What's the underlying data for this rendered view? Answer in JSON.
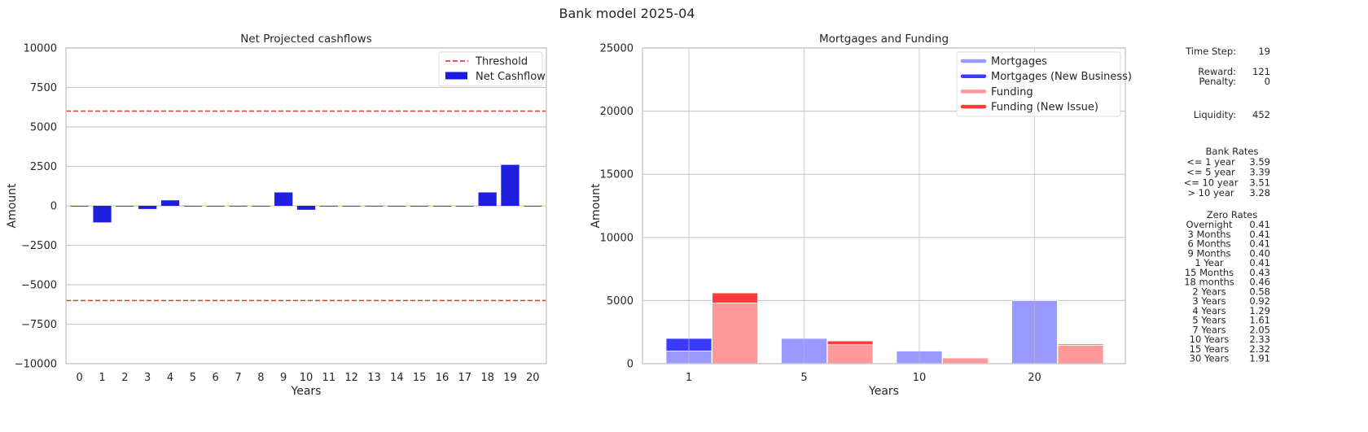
{
  "figure": {
    "title": "Bank model 2025-04"
  },
  "chart_data": [
    {
      "type": "bar",
      "title": "Net Projected cashflows",
      "xlabel": "Years",
      "ylabel": "Amount",
      "ylim": [
        -10000,
        10000
      ],
      "yticks": [
        10000,
        7500,
        5000,
        2500,
        0,
        -2500,
        -5000,
        -7500,
        -10000
      ],
      "ytick_labels": [
        "10000",
        "7500",
        "5000",
        "2500",
        "0",
        "−2500",
        "−5000",
        "−7500",
        "−10000"
      ],
      "categories": [
        "0",
        "1",
        "2",
        "3",
        "4",
        "5",
        "6",
        "7",
        "8",
        "9",
        "10",
        "11",
        "12",
        "13",
        "14",
        "15",
        "16",
        "17",
        "18",
        "19",
        "20"
      ],
      "values": [
        0,
        -1050,
        0,
        -200,
        350,
        0,
        0,
        0,
        0,
        850,
        -250,
        0,
        0,
        0,
        0,
        0,
        0,
        0,
        850,
        2600,
        0
      ],
      "thresholds": [
        6000,
        -6000
      ],
      "grid": true,
      "legend_position": "top-right",
      "legend": [
        {
          "label": "Threshold",
          "kind": "dashed-line",
          "color": "#d62728"
        },
        {
          "label": "Net Cashflow",
          "kind": "patch",
          "color": "#1a1ae0"
        }
      ],
      "colors": {
        "bar": "#1f1fe0",
        "threshold": "#d9453f"
      }
    },
    {
      "type": "bar",
      "title": "Mortgages and Funding",
      "xlabel": "Years",
      "ylabel": "Amount",
      "ylim": [
        0,
        25000
      ],
      "yticks": [
        0,
        5000,
        10000,
        15000,
        20000,
        25000
      ],
      "ytick_labels": [
        "0",
        "5000",
        "10000",
        "15000",
        "20000",
        "25000"
      ],
      "categories": [
        "1",
        "5",
        "10",
        "20"
      ],
      "stacked": true,
      "series": [
        {
          "name": "Mortgages",
          "values": [
            1000,
            2000,
            1000,
            5000
          ],
          "color": "#9999ff"
        },
        {
          "name": "Mortgages (New Business)",
          "values": [
            1000,
            0,
            0,
            0
          ],
          "color": "#3b3bff"
        },
        {
          "name": "Funding",
          "values": [
            4800,
            1500,
            450,
            1450
          ],
          "color": "#ff9999"
        },
        {
          "name": "Funding (New Issue)",
          "values": [
            800,
            300,
            0,
            100
          ],
          "color": "#ff3b3b"
        }
      ],
      "grid": true,
      "legend_position": "top-right"
    }
  ],
  "info": {
    "stats": [
      {
        "label": "Time Step:",
        "value": "19"
      },
      {
        "label": "Reward:",
        "value": "121"
      },
      {
        "label": "Penalty:",
        "value": "0"
      },
      {
        "label": "Liquidity:",
        "value": "452"
      }
    ],
    "bank_rates": {
      "title": "Bank Rates",
      "rows": [
        {
          "label": "<= 1 year",
          "value": "3.59"
        },
        {
          "label": "<= 5 year",
          "value": "3.39"
        },
        {
          "label": "<= 10 year",
          "value": "3.51"
        },
        {
          "label": "> 10 year",
          "value": "3.28"
        }
      ]
    },
    "zero_rates": {
      "title": "Zero Rates",
      "rows": [
        {
          "label": "Overnight",
          "value": "0.41"
        },
        {
          "label": "3 Months",
          "value": "0.41"
        },
        {
          "label": "6 Months",
          "value": "0.41"
        },
        {
          "label": "9 Months",
          "value": "0.40"
        },
        {
          "label": "1 Year",
          "value": "0.41"
        },
        {
          "label": "15 Months",
          "value": "0.43"
        },
        {
          "label": "18 months",
          "value": "0.46"
        },
        {
          "label": "2 Years",
          "value": "0.58"
        },
        {
          "label": "3 Years",
          "value": "0.92"
        },
        {
          "label": "4 Years",
          "value": "1.29"
        },
        {
          "label": "5 Years",
          "value": "1.61"
        },
        {
          "label": "7 Years",
          "value": "2.05"
        },
        {
          "label": "10 Years",
          "value": "2.33"
        },
        {
          "label": "15 Years",
          "value": "2.32"
        },
        {
          "label": "30 Years",
          "value": "1.91"
        }
      ]
    }
  }
}
